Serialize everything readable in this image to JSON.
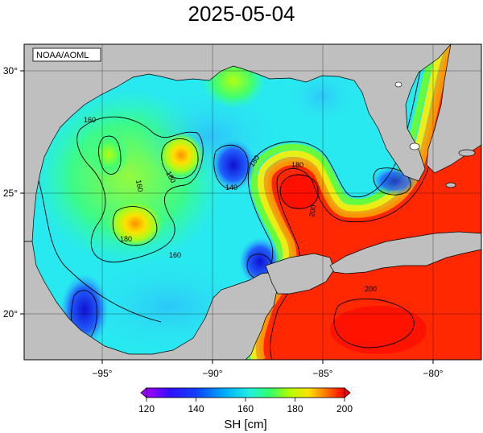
{
  "title": "2025-05-04",
  "source_label": "NOAA/AOML",
  "map": {
    "lon_ticks": [
      "−95°",
      "−90°",
      "−85°",
      "−80°"
    ],
    "lat_ticks": [
      "30°",
      "25°",
      "20°"
    ],
    "contour_labels": [
      "160",
      "160",
      "180",
      "180",
      "140",
      "160",
      "180",
      "180",
      "200",
      "160",
      "140",
      "200",
      "180"
    ],
    "land_color": "#bfbfbf",
    "ocean_colors": {
      "low": "#2020d0",
      "mid": "#20e0ff",
      "high": "#ff2000"
    }
  },
  "colorbar": {
    "title": "SH [cm]",
    "ticks": [
      "120",
      "140",
      "160",
      "180",
      "200"
    ],
    "stops": [
      "#a000ff",
      "#2020ff",
      "#00a0ff",
      "#20f0f0",
      "#20ff80",
      "#80ff00",
      "#ffff00",
      "#ff8000",
      "#ff0000"
    ]
  }
}
